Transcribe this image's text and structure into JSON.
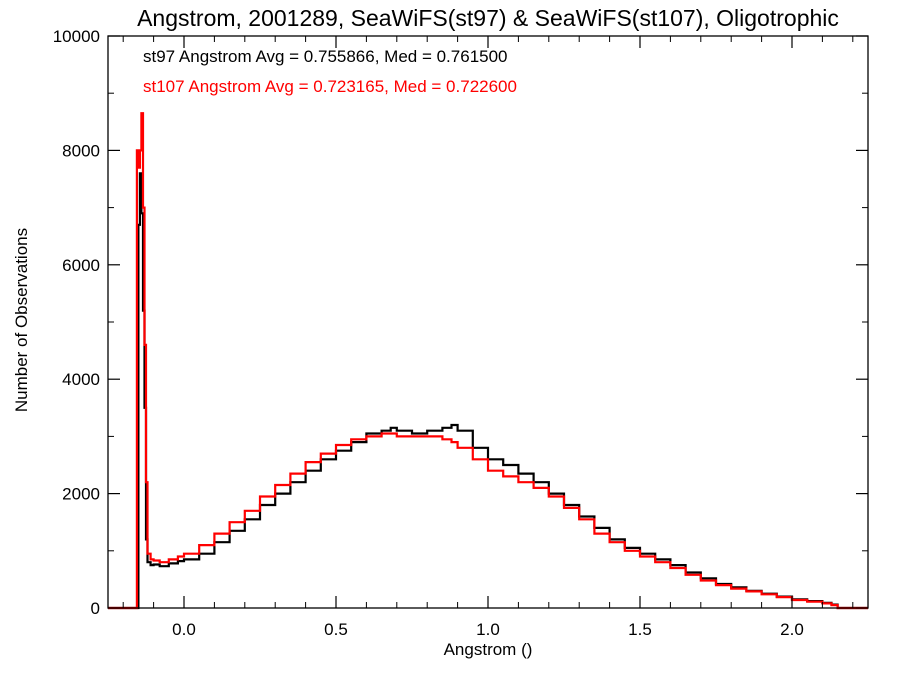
{
  "chart_data": {
    "type": "line",
    "style": "step-histogram",
    "title": "Angstrom, 2001289, SeaWiFS(st97) & SeaWiFS(st107), Oligotrophic",
    "xlabel": "Angstrom ()",
    "ylabel": "Number of Observations",
    "xlim": [
      -0.25,
      2.25
    ],
    "ylim": [
      0,
      10000
    ],
    "xticks": [
      0.0,
      0.5,
      1.0,
      1.5,
      2.0
    ],
    "xtick_labels": [
      "0.0",
      "0.5",
      "1.0",
      "1.5",
      "2.0"
    ],
    "yticks": [
      0,
      2000,
      4000,
      6000,
      8000,
      10000
    ],
    "ytick_labels": [
      "0",
      "2000",
      "4000",
      "6000",
      "8000",
      "10000"
    ],
    "grid": false,
    "annotations": [
      {
        "text": "st97 Angstrom Avg = 0.755866, Med = 0.761500",
        "color": "#000000"
      },
      {
        "text": "st107 Angstrom Avg = 0.723165, Med = 0.722600",
        "color": "#ff0000"
      }
    ],
    "series": [
      {
        "color": "#000000",
        "x": [
          -0.25,
          -0.16,
          -0.15,
          -0.145,
          -0.14,
          -0.135,
          -0.13,
          -0.125,
          -0.12,
          -0.11,
          -0.1,
          -0.08,
          -0.05,
          -0.02,
          0.0,
          0.05,
          0.1,
          0.15,
          0.2,
          0.25,
          0.3,
          0.35,
          0.4,
          0.45,
          0.5,
          0.55,
          0.6,
          0.65,
          0.68,
          0.7,
          0.75,
          0.8,
          0.85,
          0.88,
          0.9,
          0.95,
          1.0,
          1.05,
          1.1,
          1.15,
          1.2,
          1.25,
          1.3,
          1.35,
          1.4,
          1.45,
          1.5,
          1.55,
          1.6,
          1.65,
          1.7,
          1.75,
          1.8,
          1.85,
          1.9,
          1.95,
          2.0,
          2.05,
          2.1,
          2.13,
          2.15,
          2.25
        ],
        "y": [
          0,
          0,
          6700,
          7600,
          6900,
          5200,
          3500,
          1200,
          800,
          750,
          760,
          730,
          780,
          820,
          850,
          950,
          1150,
          1350,
          1550,
          1800,
          2000,
          2200,
          2400,
          2600,
          2750,
          2900,
          3050,
          3100,
          3150,
          3100,
          3050,
          3100,
          3150,
          3200,
          3100,
          2800,
          2600,
          2500,
          2350,
          2200,
          2000,
          1800,
          1600,
          1400,
          1200,
          1050,
          950,
          850,
          750,
          620,
          520,
          420,
          360,
          300,
          250,
          200,
          150,
          120,
          90,
          60,
          0,
          0
        ]
      },
      {
        "color": "#ff0000",
        "x": [
          -0.25,
          -0.16,
          -0.155,
          -0.15,
          -0.145,
          -0.14,
          -0.135,
          -0.13,
          -0.125,
          -0.12,
          -0.11,
          -0.1,
          -0.08,
          -0.05,
          -0.02,
          0.0,
          0.05,
          0.1,
          0.15,
          0.2,
          0.25,
          0.3,
          0.35,
          0.4,
          0.45,
          0.5,
          0.55,
          0.6,
          0.65,
          0.68,
          0.7,
          0.75,
          0.8,
          0.85,
          0.88,
          0.9,
          0.95,
          1.0,
          1.05,
          1.1,
          1.15,
          1.2,
          1.25,
          1.3,
          1.35,
          1.4,
          1.45,
          1.5,
          1.55,
          1.6,
          1.65,
          1.7,
          1.75,
          1.8,
          1.85,
          1.9,
          1.95,
          2.0,
          2.05,
          2.1,
          2.13,
          2.15,
          2.25
        ],
        "y": [
          0,
          0,
          8000,
          7700,
          8000,
          8650,
          7000,
          4600,
          2200,
          950,
          850,
          830,
          800,
          850,
          900,
          950,
          1100,
          1300,
          1500,
          1700,
          1950,
          2150,
          2350,
          2550,
          2700,
          2850,
          2950,
          3000,
          3050,
          3050,
          3000,
          3000,
          3000,
          2950,
          2900,
          2800,
          2600,
          2400,
          2300,
          2200,
          2100,
          1950,
          1750,
          1550,
          1300,
          1150,
          1000,
          900,
          800,
          700,
          580,
          480,
          400,
          340,
          290,
          240,
          190,
          140,
          110,
          80,
          50,
          0,
          0
        ]
      }
    ]
  }
}
